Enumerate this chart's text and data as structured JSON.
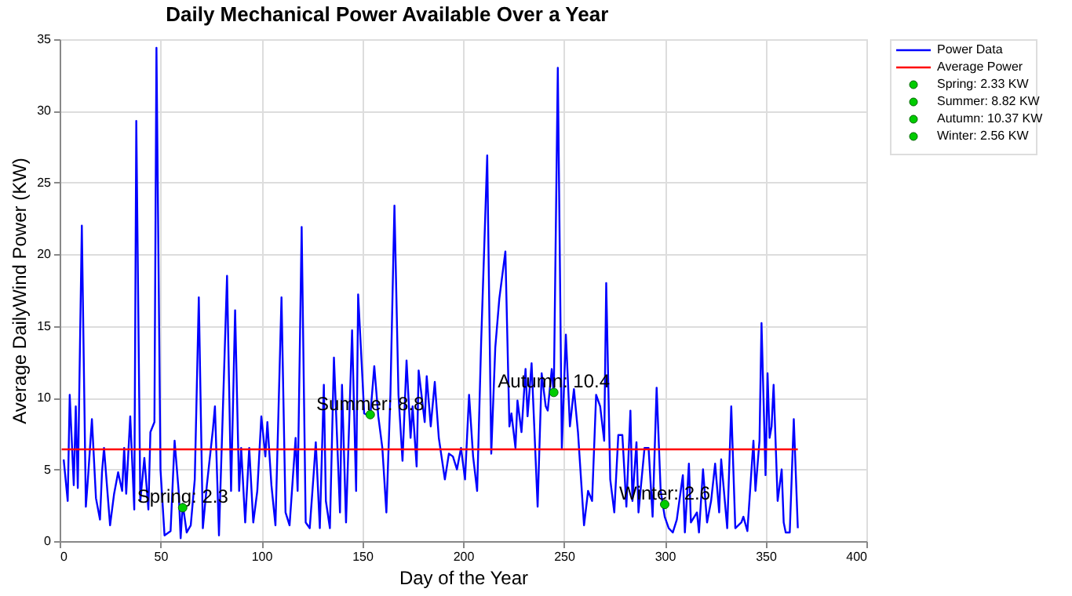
{
  "chart_data": {
    "type": "line",
    "title": "Daily Mechanical Power Available Over a Year",
    "xlabel": "Day of the Year",
    "ylabel": "Average DailyWind Power (KW)",
    "xlim": [
      0,
      400
    ],
    "xticks": [
      0,
      50,
      100,
      150,
      200,
      250,
      300,
      350,
      400
    ],
    "ylim": [
      0,
      35
    ],
    "yticks": [
      0,
      5,
      10,
      15,
      20,
      25,
      30,
      35
    ],
    "grid": true,
    "legend": "right",
    "marker": "none",
    "line_style": "solid",
    "series": [
      {
        "name": "Power Data",
        "color": "#0000ff",
        "x": [
          2,
          4,
          5,
          7,
          8,
          9,
          11,
          13,
          14,
          16,
          18,
          20,
          21,
          22,
          25,
          27,
          29,
          31,
          32,
          33,
          35,
          37,
          38,
          40,
          42,
          44,
          45,
          47,
          48,
          50,
          52,
          55,
          57,
          59,
          60,
          61,
          63,
          65,
          67,
          69,
          71,
          73,
          76,
          77,
          79,
          83,
          85,
          87,
          89,
          90,
          92,
          94,
          96,
          98,
          100,
          102,
          103,
          105,
          107,
          110,
          112,
          114,
          117,
          118,
          120,
          122,
          124,
          126,
          127,
          129,
          131,
          132,
          134,
          136,
          139,
          140,
          142,
          145,
          147,
          148,
          150,
          151,
          154,
          156,
          158,
          160,
          162,
          164,
          166,
          168,
          170,
          172,
          174,
          175,
          177,
          178,
          181,
          182,
          184,
          186,
          188,
          191,
          193,
          195,
          197,
          199,
          201,
          203,
          205,
          207,
          209,
          212,
          214,
          216,
          218,
          221,
          223,
          224,
          226,
          227,
          229,
          231,
          232,
          234,
          237,
          239,
          241,
          242,
          244,
          245,
          247,
          249,
          251,
          253,
          255,
          257,
          260,
          262,
          264,
          266,
          268,
          270,
          271,
          273,
          275,
          277,
          279,
          281,
          283,
          284,
          286,
          287,
          290,
          292,
          294,
          296,
          298,
          300,
          302,
          304,
          306,
          309,
          310,
          312,
          313,
          316,
          317,
          319,
          321,
          323,
          325,
          327,
          328,
          331,
          333,
          335,
          338,
          339,
          341,
          344,
          345,
          347,
          348,
          350,
          351,
          352,
          353,
          354,
          356,
          358,
          359,
          360,
          362,
          364,
          366
        ],
        "values": [
          5.7,
          2.8,
          10.2,
          3.9,
          9.4,
          3.7,
          22,
          2.4,
          4.3,
          8.5,
          3,
          1.5,
          4.8,
          6.5,
          1.1,
          3.3,
          4.8,
          3.5,
          6.5,
          3.3,
          8.7,
          2.2,
          29.3,
          2.8,
          5.8,
          2.2,
          7.6,
          8.3,
          34.4,
          5,
          0.4,
          0.7,
          7,
          3.5,
          0.2,
          2.6,
          0.6,
          1.1,
          4.3,
          17,
          0.9,
          3.9,
          7.8,
          9.4,
          0.4,
          18.5,
          3.5,
          16.1,
          3.5,
          6.5,
          1.3,
          6.5,
          1.3,
          3.5,
          8.7,
          5.9,
          8.3,
          3.9,
          1.1,
          17,
          2,
          1.1,
          7.2,
          3.5,
          21.9,
          1.3,
          0.9,
          4.8,
          6.9,
          0.9,
          10.9,
          2.8,
          0.9,
          12.8,
          2,
          10.9,
          1.3,
          14.7,
          3.5,
          17.2,
          11.7,
          8.9,
          8.7,
          12.2,
          8.7,
          6.5,
          2,
          10.2,
          23.4,
          10.2,
          5.6,
          12.6,
          7.2,
          9.4,
          5.2,
          11.9,
          8.3,
          11.5,
          8,
          11.1,
          7.2,
          4.3,
          6.1,
          5.9,
          5,
          6.5,
          4.3,
          10.2,
          5.9,
          3.5,
          13.9,
          26.9,
          6.1,
          13.5,
          16.9,
          20.2,
          8,
          8.9,
          6.5,
          9.8,
          7.6,
          12,
          8.7,
          12.4,
          2.4,
          11.7,
          9.4,
          9.1,
          12,
          10.2,
          33,
          6.5,
          14.4,
          8,
          10.6,
          7.6,
          1.1,
          3.5,
          2.8,
          10.2,
          9.4,
          7,
          18,
          4.3,
          2,
          7.4,
          7.4,
          2.4,
          9.1,
          2.8,
          6.9,
          2,
          6.5,
          6.5,
          1.7,
          10.7,
          3.5,
          1.7,
          0.9,
          0.6,
          1.5,
          4.6,
          0.6,
          5.4,
          1.3,
          2,
          0.6,
          5,
          1.3,
          2.8,
          5.4,
          2,
          5.7,
          0.9,
          9.4,
          0.9,
          1.3,
          1.7,
          0.7,
          7,
          3.5,
          7,
          15.2,
          4.6,
          11.7,
          7.2,
          8,
          10.9,
          2.8,
          5,
          1.3,
          0.6,
          0.6,
          8.5,
          0.9
        ]
      },
      {
        "name": "Average Power",
        "color": "#ff0000",
        "x": [
          1,
          366
        ],
        "values": [
          6.4,
          6.4
        ]
      },
      {
        "name": "Spring: 2.33 KW",
        "type": "scatter",
        "marker": "circle",
        "color": "#00cc00",
        "x": [
          61
        ],
        "values": [
          2.33
        ]
      },
      {
        "name": "Summer: 8.82 KW",
        "type": "scatter",
        "marker": "circle",
        "color": "#00cc00",
        "x": [
          154
        ],
        "values": [
          8.82
        ]
      },
      {
        "name": "Autumn: 10.37 KW",
        "type": "scatter",
        "marker": "circle",
        "color": "#00cc00",
        "x": [
          245
        ],
        "values": [
          10.37
        ]
      },
      {
        "name": "Winter: 2.56 KW",
        "type": "scatter",
        "marker": "circle",
        "color": "#00cc00",
        "x": [
          300
        ],
        "values": [
          2.56
        ]
      }
    ],
    "annotations": [
      {
        "text": "Spring: 2.3",
        "x": 61,
        "y": 2.33
      },
      {
        "text": "Summer: 8.8",
        "x": 154,
        "y": 8.82
      },
      {
        "text": "Autumn: 10.4",
        "x": 245,
        "y": 10.37
      },
      {
        "text": "Winter: 2.6",
        "x": 300,
        "y": 2.56
      }
    ]
  }
}
